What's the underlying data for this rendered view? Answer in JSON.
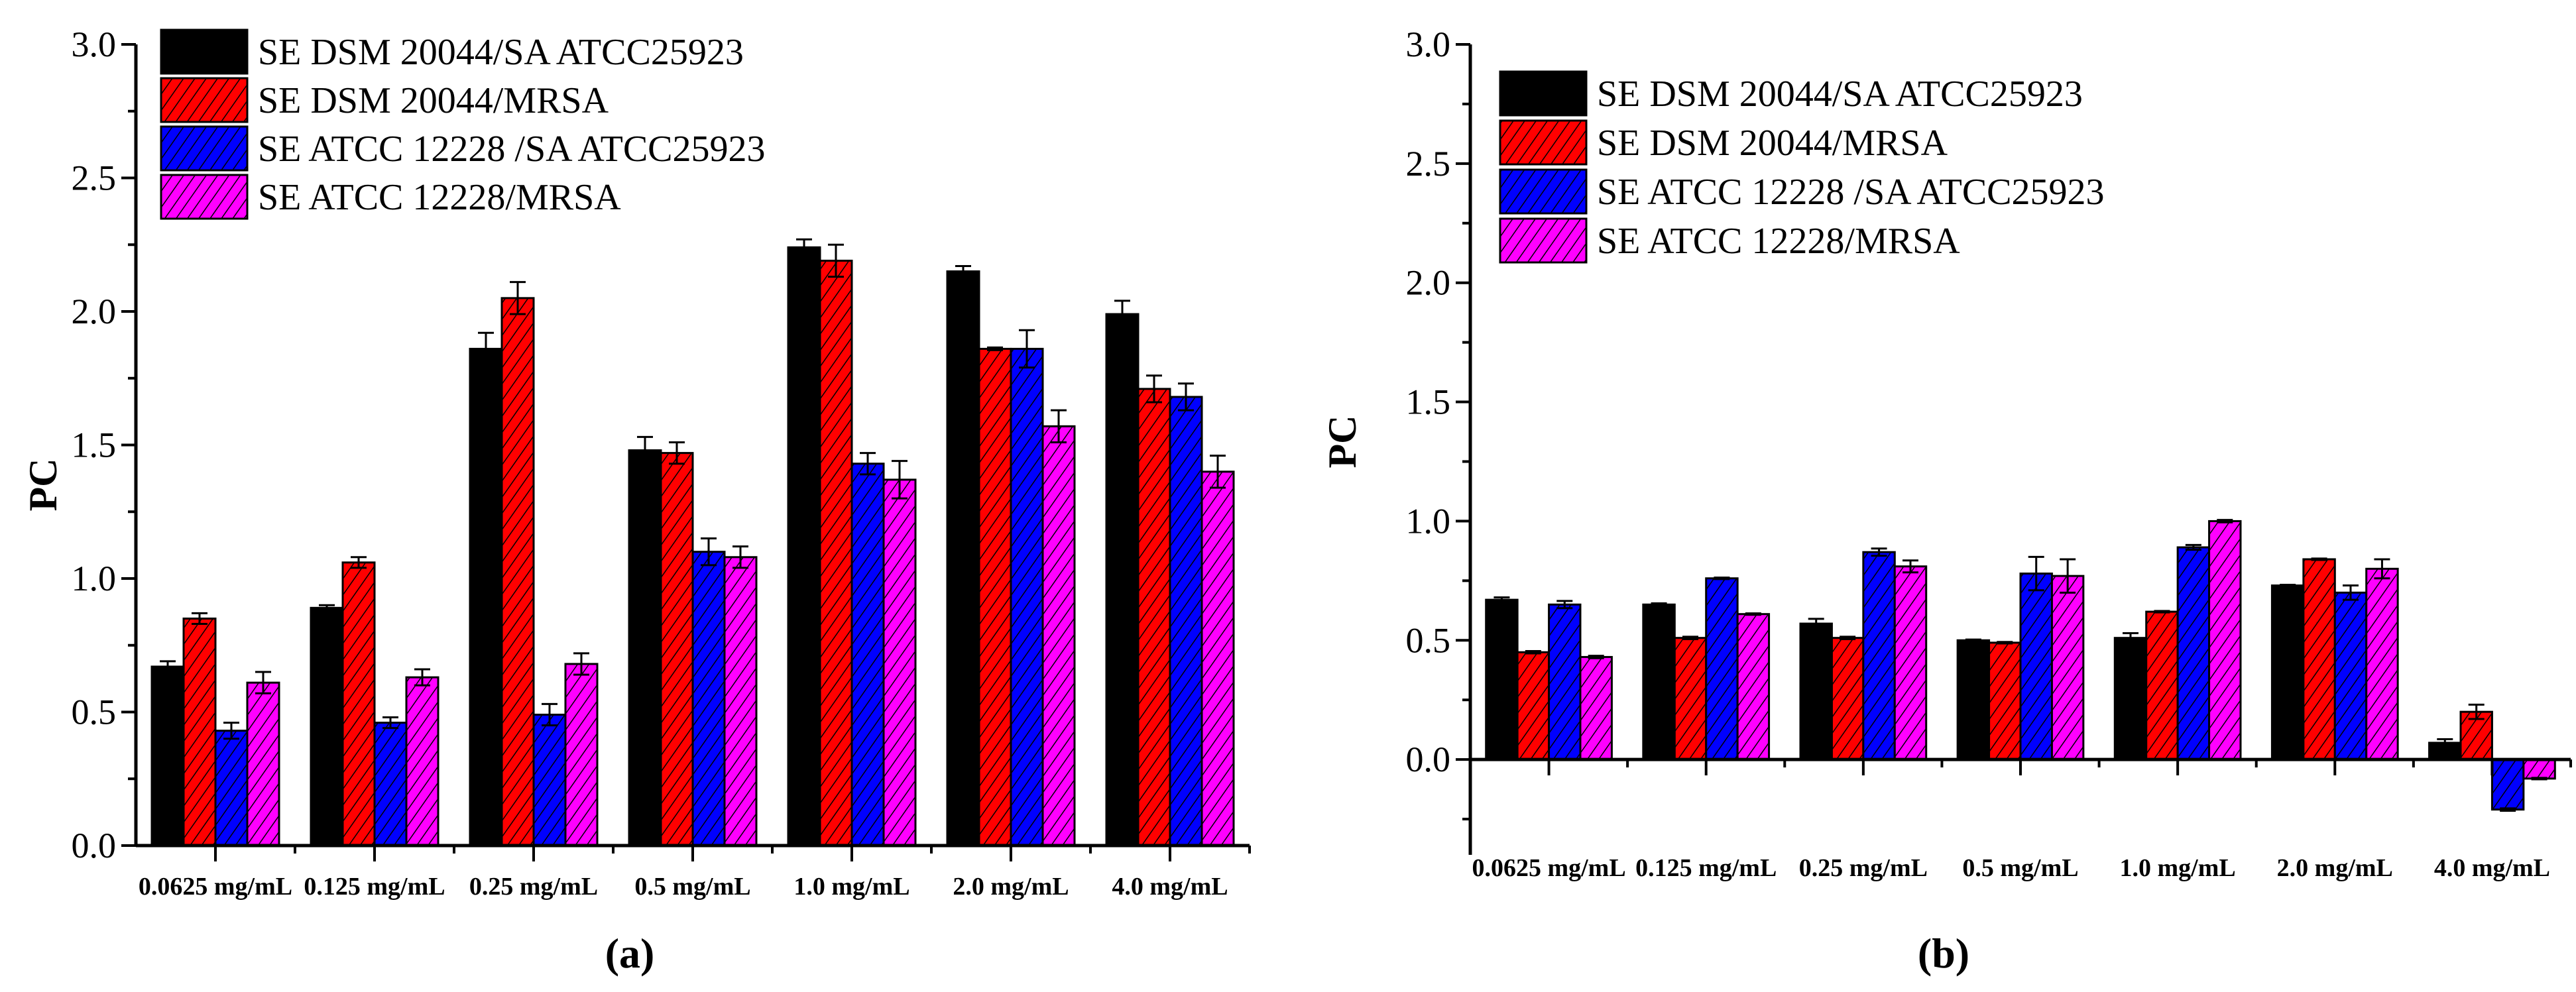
{
  "chart_data": [
    {
      "type": "bar",
      "panel_label": "(a)",
      "ylabel": "PC",
      "xlabel": "",
      "ylim": [
        0,
        3.0
      ],
      "yticks": [
        "0.0",
        "0.5",
        "1.0",
        "1.5",
        "2.0",
        "2.5",
        "3.0"
      ],
      "grid": false,
      "legend_placement": "top-left",
      "categories": [
        "0.0625 mg/mL",
        "0.125 mg/mL",
        "0.25 mg/mL",
        "0.5 mg/mL",
        "1.0 mg/mL",
        "2.0 mg/mL",
        "4.0 mg/mL"
      ],
      "series": [
        {
          "name": "SE DSM 20044/SA ATCC25923",
          "color": "#000000",
          "hatch": false,
          "values": [
            0.67,
            0.89,
            1.86,
            1.48,
            2.24,
            2.15,
            1.99
          ],
          "errors": [
            0.02,
            0.01,
            0.06,
            0.05,
            0.03,
            0.02,
            0.05
          ]
        },
        {
          "name": "SE DSM 20044/MRSA",
          "color": "#ff0000",
          "hatch": true,
          "values": [
            0.85,
            1.06,
            2.05,
            1.47,
            2.19,
            1.86,
            1.71
          ],
          "errors": [
            0.02,
            0.02,
            0.06,
            0.04,
            0.06,
            0.005,
            0.05
          ]
        },
        {
          "name": "SE ATCC 12228 /SA ATCC25923",
          "color": "#0000ff",
          "hatch": true,
          "values": [
            0.43,
            0.46,
            0.49,
            1.1,
            1.43,
            1.86,
            1.68
          ],
          "errors": [
            0.03,
            0.02,
            0.04,
            0.05,
            0.04,
            0.07,
            0.05
          ]
        },
        {
          "name": "SE ATCC 12228/MRSA",
          "color": "#ff00ff",
          "hatch": true,
          "values": [
            0.61,
            0.63,
            0.68,
            1.08,
            1.37,
            1.57,
            1.4
          ],
          "errors": [
            0.04,
            0.03,
            0.04,
            0.04,
            0.07,
            0.06,
            0.06
          ]
        }
      ]
    },
    {
      "type": "bar",
      "panel_label": "(b)",
      "ylabel": "PC",
      "xlabel": "",
      "ylim": [
        -0.4,
        3.0
      ],
      "yticks": [
        "0.0",
        "0.5",
        "1.0",
        "1.5",
        "2.0",
        "2.5",
        "3.0"
      ],
      "grid": false,
      "legend_placement": "top-left",
      "categories": [
        "0.0625 mg/mL",
        "0.125 mg/mL",
        "0.25 mg/mL",
        "0.5 mg/mL",
        "1.0 mg/mL",
        "2.0 mg/mL",
        "4.0 mg/mL"
      ],
      "series": [
        {
          "name": "SE DSM 20044/SA ATCC25923",
          "color": "#000000",
          "hatch": false,
          "values": [
            0.67,
            0.65,
            0.57,
            0.5,
            0.51,
            0.73,
            0.07
          ],
          "errors": [
            0.01,
            0.005,
            0.02,
            0.003,
            0.02,
            0.003,
            0.015
          ]
        },
        {
          "name": "SE DSM 20044/MRSA",
          "color": "#ff0000",
          "hatch": true,
          "values": [
            0.45,
            0.51,
            0.51,
            0.49,
            0.62,
            0.84,
            0.2
          ],
          "errors": [
            0.005,
            0.005,
            0.005,
            0.003,
            0.003,
            0.003,
            0.03
          ]
        },
        {
          "name": "SE ATCC 12228 /SA ATCC25923",
          "color": "#0000ff",
          "hatch": true,
          "values": [
            0.65,
            0.76,
            0.87,
            0.78,
            0.89,
            0.7,
            -0.21
          ],
          "errors": [
            0.015,
            0.003,
            0.015,
            0.07,
            0.01,
            0.03,
            0.005
          ]
        },
        {
          "name": "SE ATCC 12228/MRSA",
          "color": "#ff00ff",
          "hatch": true,
          "values": [
            0.43,
            0.61,
            0.81,
            0.77,
            1.0,
            0.8,
            -0.08
          ],
          "errors": [
            0.005,
            0.003,
            0.025,
            0.07,
            0.005,
            0.04,
            0.003
          ]
        }
      ]
    }
  ]
}
